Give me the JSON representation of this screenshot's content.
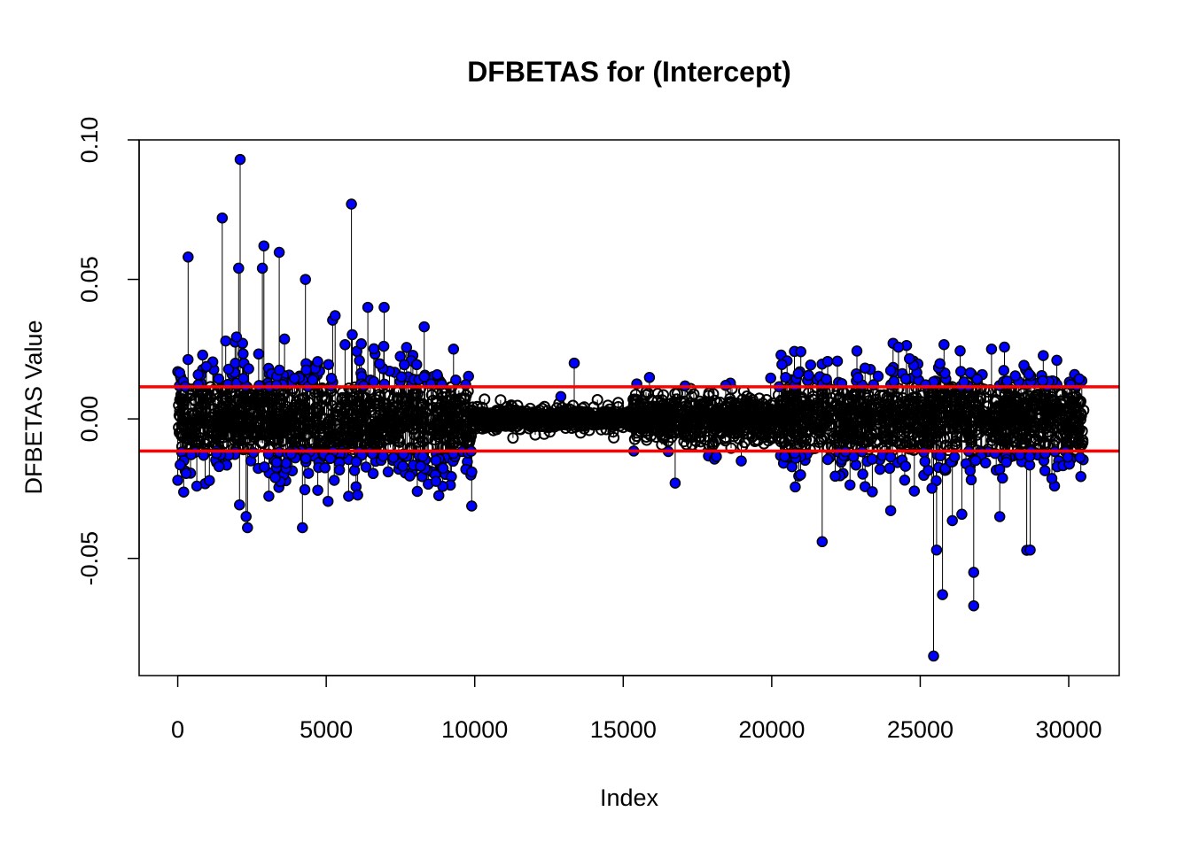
{
  "chart_data": {
    "type": "scatter",
    "title": "DFBETAS for (Intercept)",
    "xlabel": "Index",
    "ylabel": "DFBETAS Value",
    "xlim": [
      -1300,
      31700
    ],
    "ylim": [
      -0.092,
      0.1
    ],
    "x_ticks": [
      {
        "value": 0,
        "label": "0"
      },
      {
        "value": 5000,
        "label": "5000"
      },
      {
        "value": 10000,
        "label": "10000"
      },
      {
        "value": 15000,
        "label": "15000"
      },
      {
        "value": 20000,
        "label": "20000"
      },
      {
        "value": 25000,
        "label": "25000"
      },
      {
        "value": 30000,
        "label": "30000"
      }
    ],
    "y_ticks": [
      {
        "value": -0.05,
        "label": "-0.05"
      },
      {
        "value": 0.0,
        "label": "0.00"
      },
      {
        "value": 0.05,
        "label": "0.05"
      },
      {
        "value": 0.1,
        "label": "0.10"
      }
    ],
    "n_points": 30500,
    "thresholds": [
      0.0115,
      -0.0115
    ],
    "colors": {
      "influential_fill": "#0000ff",
      "point_outline": "#000000",
      "threshold_line": "#ff0000",
      "stem": "#000000"
    },
    "segments": [
      {
        "x_range": [
          0,
          9900
        ],
        "spread": 0.0095
      },
      {
        "x_range": [
          9900,
          15300
        ],
        "spread": 0.0018
      },
      {
        "x_range": [
          15300,
          20300
        ],
        "spread": 0.0045
      },
      {
        "x_range": [
          20300,
          30500
        ],
        "spread": 0.0085
      }
    ],
    "notable_points": [
      {
        "x": 2100,
        "y": 0.093
      },
      {
        "x": 5850,
        "y": 0.077
      },
      {
        "x": 1500,
        "y": 0.072
      },
      {
        "x": 2900,
        "y": 0.062
      },
      {
        "x": 350,
        "y": 0.058
      },
      {
        "x": 2050,
        "y": 0.054
      },
      {
        "x": 2850,
        "y": 0.054
      },
      {
        "x": 4300,
        "y": 0.05
      },
      {
        "x": 6400,
        "y": 0.04
      },
      {
        "x": 6950,
        "y": 0.04
      },
      {
        "x": 5300,
        "y": 0.037
      },
      {
        "x": 8300,
        "y": 0.033
      },
      {
        "x": 13350,
        "y": 0.02
      },
      {
        "x": 12900,
        "y": 0.008
      },
      {
        "x": 18450,
        "y": 0.012
      },
      {
        "x": 27400,
        "y": 0.025
      },
      {
        "x": 29600,
        "y": 0.021
      },
      {
        "x": 25450,
        "y": -0.085
      },
      {
        "x": 26800,
        "y": -0.067
      },
      {
        "x": 25750,
        "y": -0.063
      },
      {
        "x": 26800,
        "y": -0.055
      },
      {
        "x": 25550,
        "y": -0.047
      },
      {
        "x": 28700,
        "y": -0.047
      },
      {
        "x": 21700,
        "y": -0.044
      },
      {
        "x": 4200,
        "y": -0.039
      },
      {
        "x": 2350,
        "y": -0.039
      },
      {
        "x": 2300,
        "y": -0.035
      },
      {
        "x": 16750,
        "y": -0.023
      },
      {
        "x": 0,
        "y": -0.022
      },
      {
        "x": 9900,
        "y": -0.019
      }
    ]
  }
}
